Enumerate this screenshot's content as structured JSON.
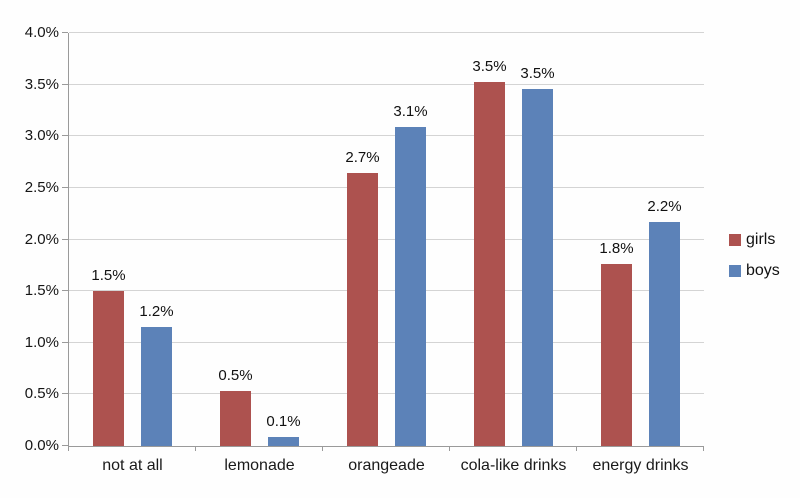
{
  "colors": {
    "girls": "#ad524f",
    "boys": "#5c82b8",
    "gridline": "#d4d4d4",
    "axis": "#9a9a9a",
    "text": "#111111",
    "background": "#fefefe"
  },
  "chart_data": {
    "type": "bar",
    "title": "",
    "xlabel": "",
    "ylabel": "",
    "categories": [
      "not at all",
      "lemonade",
      "orangeade",
      "cola-like drinks",
      "energy drinks"
    ],
    "series": [
      {
        "name": "girls",
        "color": "#ad524f",
        "values": [
          1.5,
          0.5,
          2.7,
          3.5,
          1.8
        ],
        "labels": [
          "1.5%",
          "0.5%",
          "2.7%",
          "3.5%",
          "1.8%"
        ],
        "bar_heights": [
          1.5,
          0.53,
          2.64,
          3.53,
          1.76
        ]
      },
      {
        "name": "boys",
        "color": "#5c82b8",
        "values": [
          1.2,
          0.1,
          3.1,
          3.5,
          2.2
        ],
        "labels": [
          "1.2%",
          "0.1%",
          "3.1%",
          "3.5%",
          "2.2%"
        ],
        "bar_heights": [
          1.15,
          0.09,
          3.09,
          3.46,
          2.17
        ]
      }
    ],
    "ylim": [
      0,
      4.0
    ],
    "ytick_step": 0.5,
    "ytick_labels": [
      "0.0%",
      "0.5%",
      "1.0%",
      "1.5%",
      "2.0%",
      "2.5%",
      "3.0%",
      "3.5%",
      "4.0%"
    ],
    "grid": true,
    "legend_position": "right",
    "legend_entries": [
      "girls",
      "boys"
    ]
  }
}
